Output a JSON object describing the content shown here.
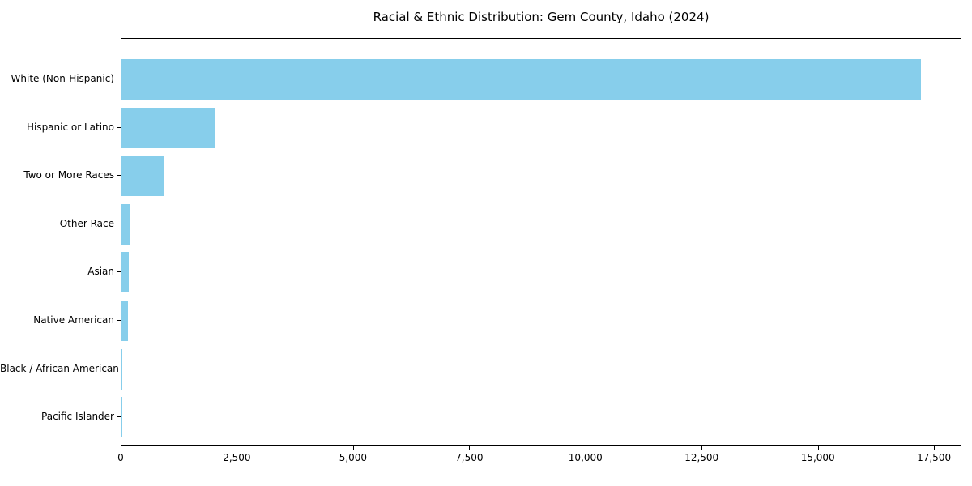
{
  "chart_data": {
    "type": "bar",
    "orientation": "horizontal",
    "title": "Racial & Ethnic Distribution: Gem County, Idaho (2024)",
    "categories": [
      "White (Non-Hispanic)",
      "Hispanic or Latino",
      "Two or More Races",
      "Other Race",
      "Asian",
      "Native American",
      "Black / African American",
      "Pacific Islander"
    ],
    "values": [
      17200,
      2000,
      925,
      165,
      160,
      145,
      20,
      10
    ],
    "xlabel": "",
    "ylabel": "",
    "xlim": [
      0,
      18090
    ],
    "x_ticks": [
      0,
      2500,
      5000,
      7500,
      10000,
      12500,
      15000,
      17500
    ],
    "x_tick_labels": [
      "0",
      "2,500",
      "5,000",
      "7,500",
      "10,000",
      "12,500",
      "15,000",
      "17,500"
    ],
    "bar_color": "#87CEEB",
    "axis_color": "#000000",
    "background_color": "#ffffff",
    "grid": false,
    "legend": null
  }
}
